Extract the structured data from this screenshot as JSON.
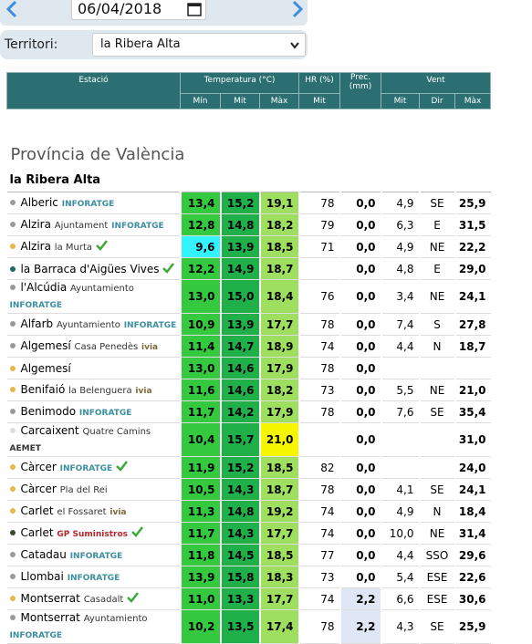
{
  "toolbar": {
    "date": "06/04/2018",
    "territory_label": "Territori:",
    "territory": "la Ribera Alta"
  },
  "table": {
    "header": {
      "station": "Estació",
      "temperature": "Temperatura (°C)",
      "humidity": "HR (%)",
      "precipitation": "Prec. (mm)",
      "wind": "Vent",
      "sub": [
        "Mín",
        "Mit",
        "Màx",
        "Mit",
        "Mit",
        "Dir",
        "Màx"
      ]
    },
    "province": "Província de València",
    "region": "la Ribera Alta",
    "rows": [
      {
        "name": "Alberic",
        "logo": "INFORATGE",
        "logo_color": "#3b8fa0",
        "dot": "#9a9a9a",
        "values": [
          "13,4",
          "15,2",
          "19,1",
          "78",
          "0,0",
          "4,9",
          "SE",
          "25,9"
        ]
      },
      {
        "name": "Alzira",
        "place": "Ajuntament",
        "logo": "INFORATGE",
        "logo_color": "#3b8fa0",
        "dot": "#9a9a9a",
        "values": [
          "12,8",
          "14,8",
          "18,2",
          "79",
          "0,0",
          "6,3",
          "E",
          "31,5"
        ]
      },
      {
        "name": "Alzira",
        "place": "la Murta",
        "check": true,
        "dot": "#e6b84a",
        "highlight": {
          "index": 0,
          "color": "#33f3ff"
        },
        "values": [
          "9,6",
          "13,9",
          "18,5",
          "71",
          "0,0",
          "4,9",
          "NE",
          "22,2"
        ]
      },
      {
        "name": "la Barraca d'Aigües Vives",
        "check": true,
        "dot": "#1e6b63",
        "values": [
          "12,2",
          "14,9",
          "18,7",
          null,
          "0,0",
          "4,8",
          "E",
          "29,0"
        ]
      },
      {
        "name": "l'Alcúdia",
        "place": "Ayuntamiento",
        "logo": "INFORATGE",
        "logo_color": "#3b8fa0",
        "dot": "#9a9a9a",
        "values": [
          "13,0",
          "15,0",
          "18,4",
          "76",
          "0,0",
          "3,4",
          "NE",
          "24,1"
        ]
      },
      {
        "name": "Alfarb",
        "place": "Ayuntamiento",
        "logo": "INFORATGE",
        "logo_color": "#3b8fa0",
        "dot": "#9a9a9a",
        "values": [
          "10,9",
          "13,9",
          "17,7",
          "78",
          "0,0",
          "7,4",
          "S",
          "27,8"
        ]
      },
      {
        "name": "Algemesí",
        "place": "Casa Penedès",
        "logo": "ivia",
        "logo_color": "#7a6a3a",
        "dot": "#9a9a9a",
        "values": [
          "11,4",
          "14,7",
          "18,9",
          "74",
          "0,0",
          "4,4",
          "N",
          "18,7"
        ]
      },
      {
        "name": "Algemesí",
        "dot": "#e6b84a",
        "values": [
          "13,0",
          "14,6",
          "17,9",
          "78",
          "0,0",
          null,
          null,
          null
        ]
      },
      {
        "name": "Benifaió",
        "place": "la Belenguera",
        "logo": "ivia",
        "logo_color": "#7a6a3a",
        "dot": "#e6b84a",
        "values": [
          "11,6",
          "14,6",
          "18,2",
          "73",
          "0,0",
          "5,5",
          "NE",
          "21,0"
        ]
      },
      {
        "name": "Benimodo",
        "logo": "INFORATGE",
        "logo_color": "#3b8fa0",
        "dot": "#9a9a9a",
        "values": [
          "11,7",
          "14,2",
          "17,9",
          "78",
          "0,0",
          "7,6",
          "SE",
          "35,4"
        ]
      },
      {
        "name": "Carcaixent",
        "place": "Quatre Camins",
        "logo": "AEMET",
        "logo_color": "#333333",
        "dot": "#dddddd",
        "highlight": {
          "index": 2,
          "color": "#f6f600"
        },
        "values": [
          "10,4",
          "15,7",
          "21,0",
          null,
          "0,0",
          null,
          null,
          "31,0"
        ]
      },
      {
        "name": "Càrcer",
        "logo": "INFORATGE",
        "logo_color": "#3b8fa0",
        "check": true,
        "dot": "#e6b84a",
        "values": [
          "11,9",
          "15,2",
          "18,5",
          "82",
          "0,0",
          null,
          null,
          "24,0"
        ]
      },
      {
        "name": "Càrcer",
        "place": "Pla del Rei",
        "dot": "#e6b84a",
        "values": [
          "10,5",
          "14,3",
          "18,7",
          "78",
          "0,0",
          "4,1",
          "SE",
          "24,1"
        ]
      },
      {
        "name": "Carlet",
        "place": "el Fossaret",
        "logo": "ivia",
        "logo_color": "#7a6a3a",
        "dot": "#e6b84a",
        "values": [
          "11,3",
          "14,8",
          "19,2",
          "74",
          "0,0",
          "4,9",
          "N",
          "18,4"
        ]
      },
      {
        "name": "Carlet",
        "logo": "GP Suministros",
        "logo_color": "#b3262b",
        "check": true,
        "dot": "#3a4a2a",
        "values": [
          "11,7",
          "14,3",
          "17,7",
          "74",
          "0,0",
          "10,0",
          "NE",
          "31,4"
        ]
      },
      {
        "name": "Catadau",
        "logo": "INFORATGE",
        "logo_color": "#3b8fa0",
        "dot": "#9a9a9a",
        "values": [
          "11,8",
          "14,5",
          "18,5",
          "77",
          "0,0",
          "4,4",
          "SSO",
          "29,6"
        ]
      },
      {
        "name": "Llombai",
        "logo": "INFORATGE",
        "logo_color": "#3b8fa0",
        "dot": "#9a9a9a",
        "values": [
          "13,9",
          "15,8",
          "18,3",
          "73",
          "0,0",
          "5,4",
          "ESE",
          "22,6"
        ]
      },
      {
        "name": "Montserrat",
        "place": "Casadalt",
        "check": true,
        "dot": "#e6b84a",
        "highlight": {
          "index": 4,
          "color": "#dfe6f6"
        },
        "values": [
          "11,0",
          "13,3",
          "17,7",
          "74",
          "2,2",
          "6,6",
          "ESE",
          "30,6"
        ]
      },
      {
        "name": "Montserrat",
        "place": "Ayuntamiento",
        "logo": "INFORATGE",
        "logo_color": "#3b8fa0",
        "dot": "#9a9a9a",
        "highlight": {
          "index": 4,
          "color": "#dfe6f6"
        },
        "values": [
          "10,2",
          "13,5",
          "17,4",
          "78",
          "2,2",
          "4,3",
          "SE",
          "25,9"
        ]
      }
    ]
  }
}
